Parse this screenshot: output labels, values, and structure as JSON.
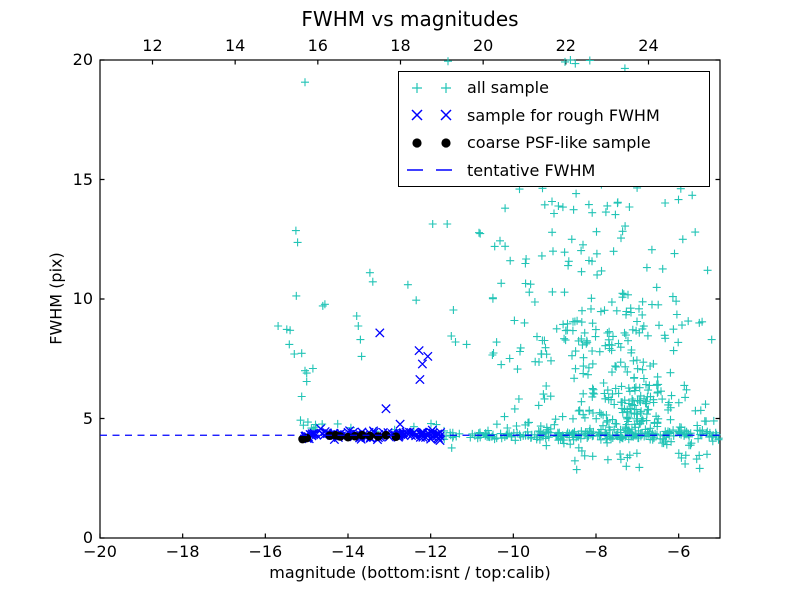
{
  "chart_data": {
    "type": "scatter",
    "title": "FWHM vs magnitudes",
    "xlabel": "magnitude (bottom:isnt / top:calib)",
    "ylabel": "FWHM (pix)",
    "xlim_bottom": [
      -20,
      -5
    ],
    "xlim_top": [
      10.73,
      25.73
    ],
    "ylim": [
      0,
      20
    ],
    "xticks_bottom": [
      -20,
      -18,
      -16,
      -14,
      -12,
      -10,
      -8,
      -6
    ],
    "xticks_bottom_labels": [
      "−20",
      "−18",
      "−16",
      "−14",
      "−12",
      "−10",
      "−8",
      "−6"
    ],
    "xticks_top": [
      12,
      14,
      16,
      18,
      20,
      22,
      24
    ],
    "xticks_top_labels": [
      "12",
      "14",
      "16",
      "18",
      "20",
      "22",
      "24"
    ],
    "yticks": [
      0,
      5,
      10,
      15,
      20
    ],
    "yticks_labels": [
      "0",
      "5",
      "10",
      "15",
      "20"
    ],
    "grid": false,
    "legend_position": "upper right",
    "tentative_fwhm": 4.3,
    "colors": {
      "all_sample": "#22c4b6",
      "rough_fwhm": "#0000ff",
      "psf_like": "#000000",
      "tentative_line": "#0000ff",
      "frame": "#000000",
      "background": "#ffffff"
    },
    "series": [
      {
        "name": "all sample",
        "marker": "plus",
        "color": "#22c4b6",
        "points": [
          [
            -15.04,
            19.07
          ],
          [
            -11.58,
            19.95
          ],
          [
            -8.75,
            19.92
          ],
          [
            -8.62,
            20.0
          ],
          [
            -8.5,
            19.85
          ],
          [
            -8.15,
            19.98
          ],
          [
            -7.3,
            19.65
          ],
          [
            -8.6,
            17.5
          ],
          [
            -8.45,
            16.4
          ],
          [
            -8.1,
            16.2
          ],
          [
            -7.75,
            16.9
          ],
          [
            -8.9,
            15.2
          ],
          [
            -7.2,
            15.6
          ],
          [
            -7.5,
            15.1
          ],
          [
            -6.9,
            15.35
          ],
          [
            -15.26,
            12.86
          ],
          [
            -15.22,
            12.37
          ],
          [
            -15.25,
            10.13
          ],
          [
            -14.61,
            9.71
          ],
          [
            -14.56,
            9.78
          ],
          [
            -15.69,
            8.87
          ],
          [
            -15.48,
            8.73
          ],
          [
            -15.4,
            8.69
          ],
          [
            -15.42,
            8.1
          ],
          [
            -15.3,
            7.7
          ],
          [
            -15.12,
            7.73
          ],
          [
            -14.85,
            7.09
          ],
          [
            -15.04,
            7.0
          ],
          [
            -15.0,
            6.9
          ],
          [
            -15.0,
            6.55
          ],
          [
            -15.12,
            5.92
          ],
          [
            -15.15,
            4.93
          ],
          [
            -15.08,
            4.72
          ],
          [
            -14.97,
            4.85
          ],
          [
            -13.79,
            9.29
          ],
          [
            -13.75,
            8.87
          ],
          [
            -13.7,
            8.3
          ],
          [
            -13.67,
            7.6
          ],
          [
            -13.47,
            11.1
          ],
          [
            -13.4,
            10.72
          ],
          [
            -12.35,
            9.95
          ],
          [
            -12.55,
            10.6
          ],
          [
            -11.95,
            13.14
          ],
          [
            -11.6,
            13.14
          ],
          [
            -11.45,
            9.54
          ],
          [
            -11.5,
            8.45
          ],
          [
            -11.4,
            8.2
          ],
          [
            -11.13,
            8.1
          ],
          [
            -11.49,
            3.77
          ],
          [
            -10.2,
            13.8
          ],
          [
            -9.85,
            14.6
          ],
          [
            -10.45,
            12.2
          ],
          [
            -6.14,
            10.1
          ],
          [
            -5.5,
            9.0
          ],
          [
            -5.2,
            8.3
          ],
          [
            -5.9,
            12.5
          ],
          [
            -5.6,
            12.8
          ],
          [
            -5.3,
            11.2
          ],
          [
            -6.1,
            11.9
          ],
          [
            -5.15,
            4.9
          ],
          [
            -5.35,
            5.6
          ]
        ],
        "clusters": [
          {
            "n": 200,
            "x": {
              "u": [
                -11.68,
                -5.02
              ]
            },
            "y": {
              "g": [
                4.3,
                0.1
              ]
            }
          },
          {
            "n": 60,
            "x": {
              "u": [
                -9.5,
                -5.1
              ]
            },
            "y": {
              "g": [
                4.35,
                0.25
              ],
              "clip": [
                3.6,
                5.1
              ]
            }
          },
          {
            "n": 12,
            "x": {
              "u": [
                -15.2,
                -11.75
              ]
            },
            "y": {
              "u": [
                4.45,
                4.8
              ]
            }
          },
          {
            "n": 130,
            "x": {
              "g": [
                -7.15,
                0.8
              ],
              "clip": [
                -9.5,
                -5.1
              ]
            },
            "y": {
              "g": [
                5.5,
                0.6
              ],
              "clip": [
                4.45,
                7.5
              ]
            }
          },
          {
            "n": 120,
            "x": {
              "g": [
                -7.5,
                1.0
              ],
              "clip": [
                -10.6,
                -5.2
              ]
            },
            "y": {
              "g": [
                8.3,
                1.2
              ],
              "clip": [
                6.0,
                11.5
              ]
            }
          },
          {
            "n": 45,
            "x": {
              "g": [
                -7.8,
                1.1
              ],
              "clip": [
                -11.2,
                -5.6
              ]
            },
            "y": {
              "u": [
                11.0,
                15.0
              ]
            }
          },
          {
            "n": 26,
            "x": {
              "u": [
                -8.6,
                -5.05
              ]
            },
            "y": {
              "u": [
                2.85,
                4.05
              ]
            }
          },
          {
            "n": 24,
            "x": {
              "u": [
                -10.7,
                -9.2
              ]
            },
            "y": {
              "u": [
                4.6,
                8.2
              ]
            }
          },
          {
            "n": 14,
            "x": {
              "u": [
                -10.9,
                -9.0
              ]
            },
            "y": {
              "u": [
                8.2,
                12.8
              ]
            }
          }
        ]
      },
      {
        "name": "sample for rough FWHM",
        "marker": "x",
        "color": "#0000ff",
        "points": [
          [
            -13.23,
            8.58
          ],
          [
            -12.28,
            7.84
          ],
          [
            -12.07,
            7.6
          ],
          [
            -12.2,
            7.28
          ],
          [
            -12.26,
            6.63
          ],
          [
            -13.08,
            5.41
          ],
          [
            -12.74,
            4.76
          ]
        ],
        "clusters": [
          {
            "n": 115,
            "x": {
              "u": [
                -15.08,
                -11.7
              ]
            },
            "y": {
              "g": [
                4.3,
                0.085
              ]
            }
          }
        ]
      },
      {
        "name": "coarse PSF-like sample",
        "marker": "dot",
        "color": "#000000",
        "points": [
          [
            -15.1,
            4.14
          ],
          [
            -15.0,
            4.18
          ],
          [
            -14.44,
            4.28
          ],
          [
            -14.3,
            4.3
          ],
          [
            -14.19,
            4.25
          ],
          [
            -14.0,
            4.22
          ],
          [
            -13.83,
            4.26
          ],
          [
            -13.66,
            4.3
          ],
          [
            -13.47,
            4.27
          ],
          [
            -13.27,
            4.25
          ],
          [
            -13.08,
            4.3
          ],
          [
            -12.84,
            4.24
          ]
        ],
        "clusters": []
      },
      {
        "name": "tentative FWHM",
        "marker": "dash",
        "color": "#0000ff",
        "hline": 4.3
      }
    ]
  }
}
